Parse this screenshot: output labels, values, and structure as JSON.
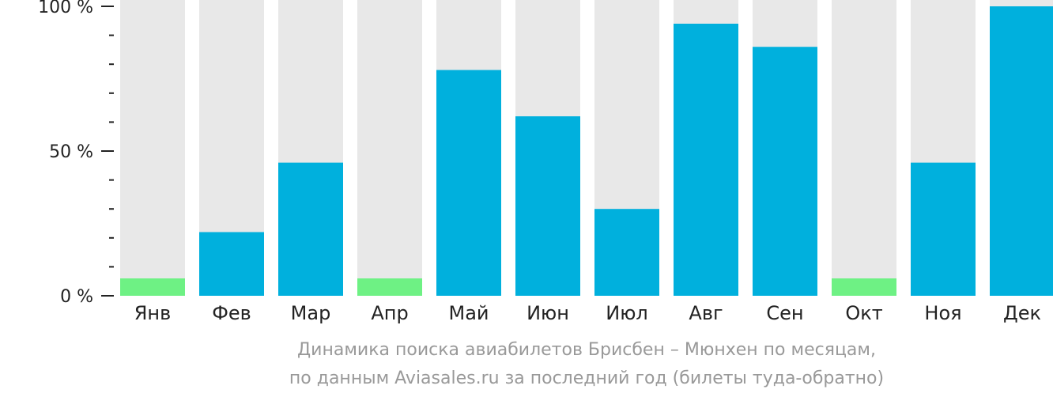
{
  "chart_data": {
    "type": "bar",
    "categories": [
      "Янв",
      "Фев",
      "Мар",
      "Апр",
      "Май",
      "Июн",
      "Июл",
      "Авг",
      "Сен",
      "Окт",
      "Ноя",
      "Дек"
    ],
    "values": [
      6,
      22,
      46,
      6,
      78,
      62,
      30,
      94,
      86,
      6,
      46,
      100
    ],
    "highlight_low": [
      true,
      false,
      false,
      true,
      false,
      false,
      false,
      false,
      false,
      true,
      false,
      false
    ],
    "ylim": [
      0,
      100
    ],
    "yticks": [
      {
        "value": 0,
        "label": "0 %"
      },
      {
        "value": 50,
        "label": "50 %"
      },
      {
        "value": 100,
        "label": "100 %"
      }
    ],
    "minor_tick_step": 10,
    "colors": {
      "bar": "#00b0dd",
      "bar_low": "#6ef184",
      "background": "#e8e8e8",
      "axis": "#222222"
    },
    "caption_line1": "Динамика поиска авиабилетов Брисбен – Мюнхен по месяцам,",
    "caption_line2": "по данным Aviasales.ru за последний год (билеты туда-обратно)"
  }
}
